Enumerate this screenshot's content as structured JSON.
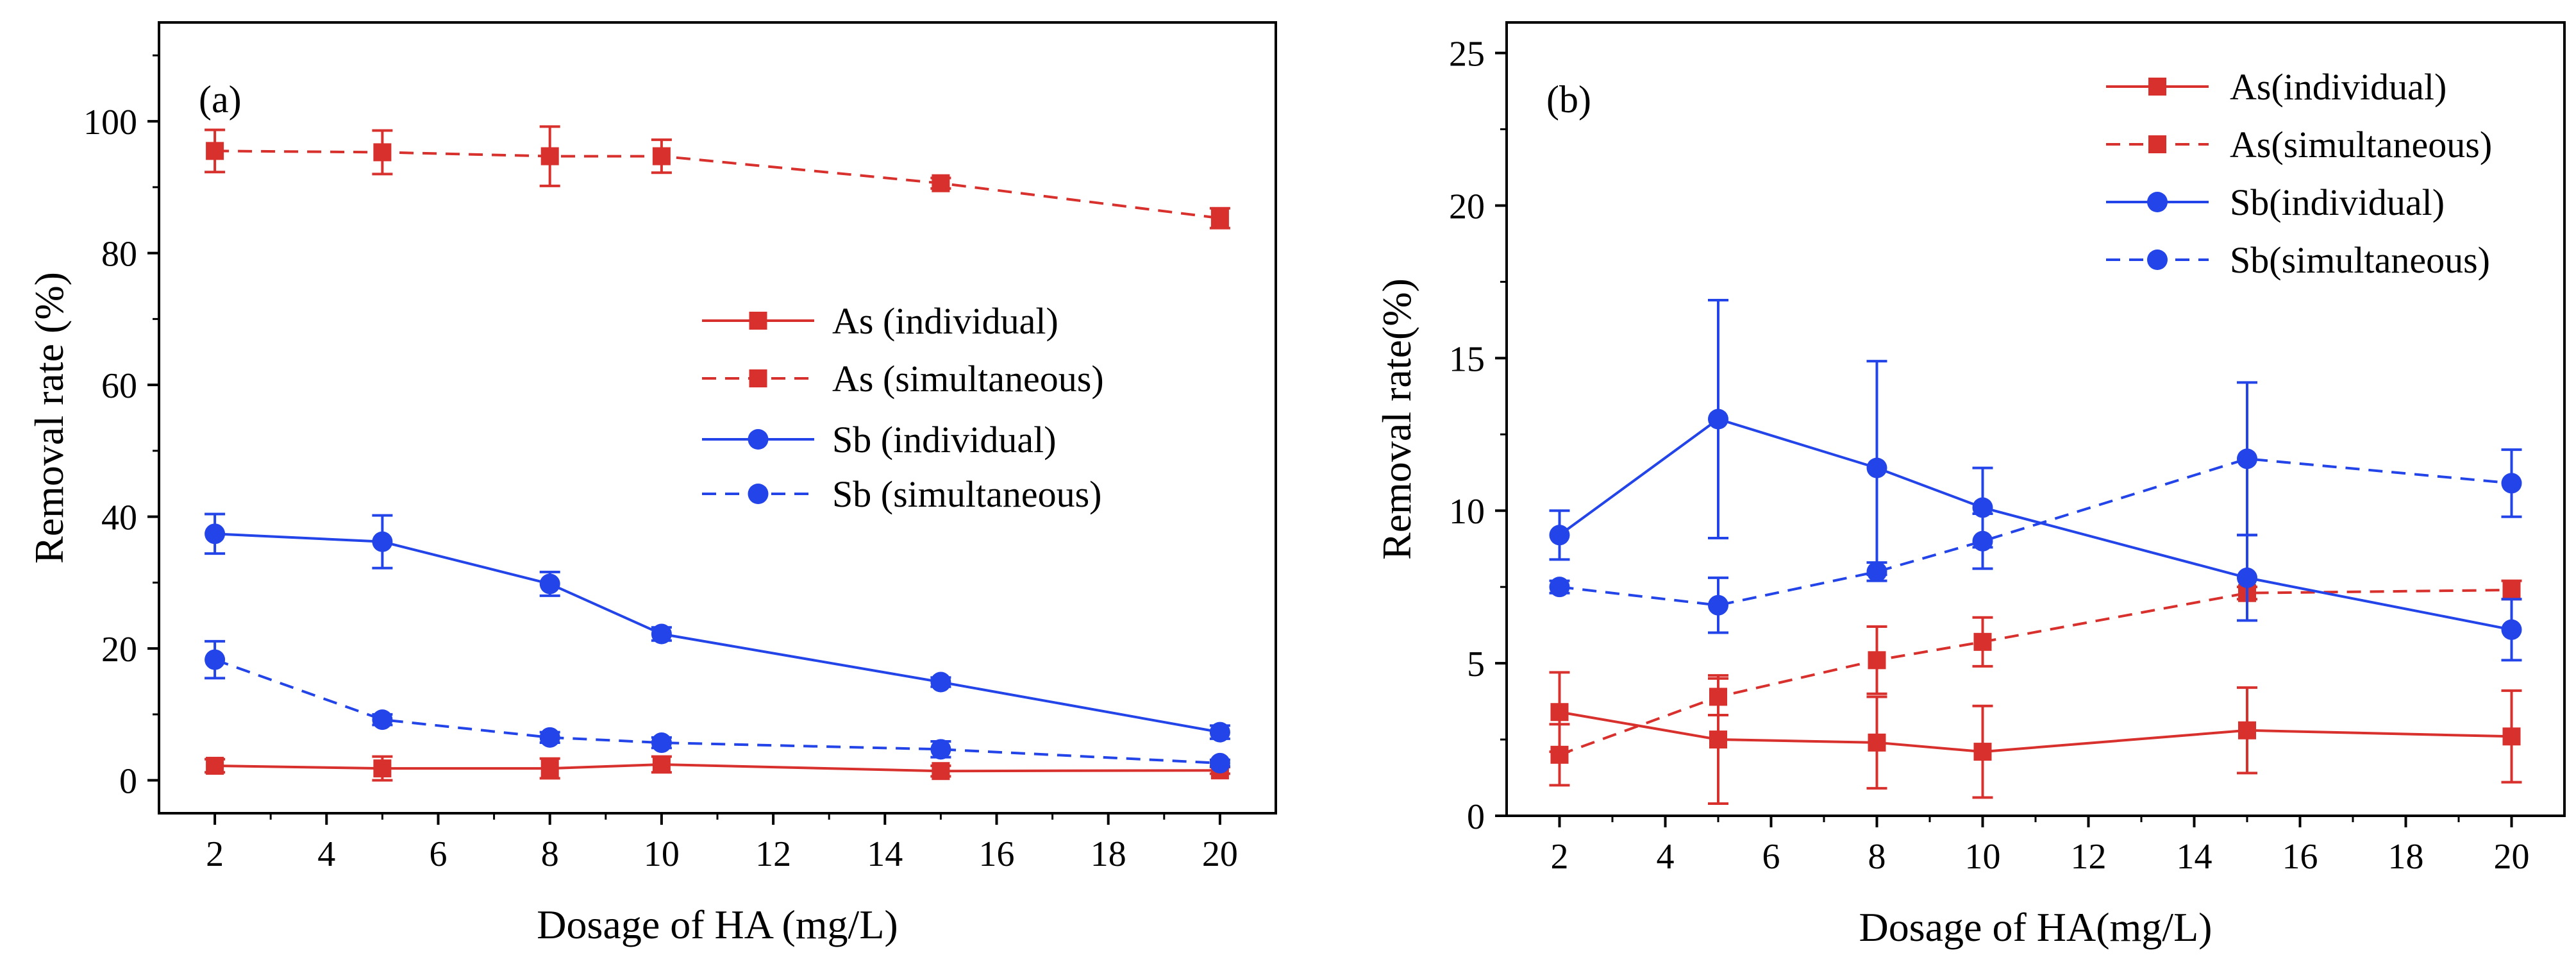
{
  "colors": {
    "red": "#d8302c",
    "blue": "#2244e8",
    "frame": "#000000"
  },
  "chart_data": [
    {
      "type": "line",
      "panel_label": "(a)",
      "xlabel": "Dosage of HA (mg/L)",
      "ylabel": "Removal rate (%)",
      "xlim": [
        1,
        21
      ],
      "ylim": [
        -5,
        115
      ],
      "xticks": [
        2,
        4,
        6,
        8,
        10,
        12,
        14,
        16,
        18,
        20
      ],
      "yticks": [
        0,
        20,
        40,
        60,
        80,
        100
      ],
      "x": [
        2,
        5,
        8,
        10,
        15,
        20
      ],
      "legend_position": "center-right",
      "series": [
        {
          "name": "As (individual)",
          "color": "red",
          "dashed": false,
          "marker": "square",
          "values": [
            2.2,
            1.8,
            1.8,
            2.4,
            1.4,
            1.5
          ],
          "errors": [
            1.0,
            1.8,
            1.5,
            1.2,
            0.8,
            0.5
          ]
        },
        {
          "name": "As (simultaneous)",
          "color": "red",
          "dashed": true,
          "marker": "square",
          "values": [
            95.5,
            95.3,
            94.7,
            94.7,
            90.6,
            85.3
          ],
          "errors": [
            3.2,
            3.3,
            4.5,
            2.5,
            0.8,
            1.5
          ]
        },
        {
          "name": "Sb (individual)",
          "color": "blue",
          "dashed": false,
          "marker": "circle",
          "values": [
            37.4,
            36.2,
            29.8,
            22.2,
            14.9,
            7.3
          ],
          "errors": [
            3.0,
            4.0,
            1.8,
            1.0,
            0.7,
            1.0
          ]
        },
        {
          "name": "Sb (simultaneous)",
          "color": "blue",
          "dashed": true,
          "marker": "circle",
          "values": [
            18.3,
            9.2,
            6.5,
            5.7,
            4.7,
            2.6
          ],
          "errors": [
            2.8,
            0.8,
            0.8,
            0.8,
            1.2,
            0.5
          ]
        }
      ]
    },
    {
      "type": "line",
      "panel_label": "(b)",
      "xlabel": "Dosage of HA(mg/L)",
      "ylabel": "Removal rate(%)",
      "xlim": [
        1,
        21
      ],
      "ylim": [
        0,
        26
      ],
      "xticks": [
        2,
        4,
        6,
        8,
        10,
        12,
        14,
        16,
        18,
        20
      ],
      "yticks": [
        0,
        5,
        10,
        15,
        20,
        25
      ],
      "x": [
        2,
        5,
        8,
        10,
        15,
        20
      ],
      "legend_position": "top-right",
      "series": [
        {
          "name": "As(individual)",
          "color": "red",
          "dashed": false,
          "marker": "square",
          "values": [
            3.4,
            2.5,
            2.4,
            2.1,
            2.8,
            2.6
          ],
          "errors": [
            1.3,
            2.1,
            1.5,
            1.5,
            1.4,
            1.5
          ]
        },
        {
          "name": "As(simultaneous)",
          "color": "red",
          "dashed": true,
          "marker": "square",
          "values": [
            2.0,
            3.9,
            5.1,
            5.7,
            7.3,
            7.4
          ],
          "errors": [
            1.0,
            0.6,
            1.1,
            0.8,
            0.2,
            0.3
          ]
        },
        {
          "name": "Sb(individual)",
          "color": "blue",
          "dashed": false,
          "marker": "circle",
          "values": [
            9.2,
            13.0,
            11.4,
            10.1,
            7.8,
            6.1
          ],
          "errors": [
            0.8,
            3.9,
            3.5,
            1.3,
            1.4,
            1.0
          ]
        },
        {
          "name": "Sb(simultaneous)",
          "color": "blue",
          "dashed": true,
          "marker": "circle",
          "values": [
            7.5,
            6.9,
            8.0,
            9.0,
            11.7,
            10.9
          ],
          "errors": [
            0.2,
            0.9,
            0.3,
            0.9,
            2.5,
            1.1
          ]
        }
      ]
    }
  ]
}
